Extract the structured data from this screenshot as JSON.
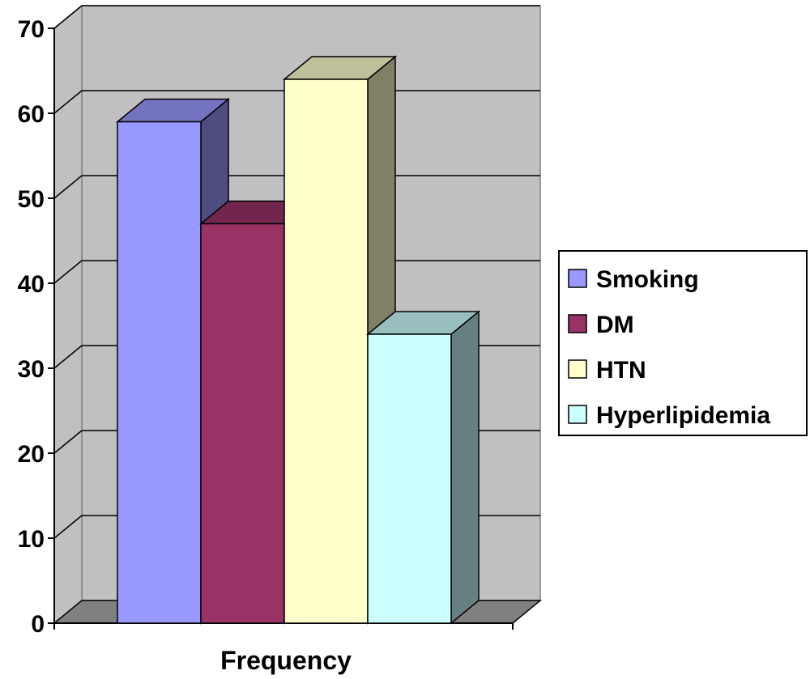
{
  "chart_data": {
    "type": "bar",
    "style": "3d-clustered-column",
    "categories": [
      "Frequency"
    ],
    "series": [
      {
        "name": "Smoking",
        "values": [
          59
        ],
        "color": "#9999FF",
        "side_color": "#4D4D80",
        "top_color": "#7373BF"
      },
      {
        "name": "DM",
        "values": [
          47
        ],
        "color": "#993366",
        "side_color": "#4D1933",
        "top_color": "#73264D"
      },
      {
        "name": "HTN",
        "values": [
          64
        ],
        "color": "#FFFFCC",
        "side_color": "#808066",
        "top_color": "#BFBF99"
      },
      {
        "name": "Hyperlipidemia",
        "values": [
          34
        ],
        "color": "#CCFFFF",
        "side_color": "#668080",
        "top_color": "#99BFBF"
      }
    ],
    "title": "",
    "xlabel": "Frequency",
    "ylabel": "",
    "ylim": [
      0,
      70
    ],
    "yticks": [
      "0",
      "10",
      "20",
      "30",
      "40",
      "50",
      "60",
      "70"
    ],
    "grid": true,
    "legend": "right",
    "wall_color": "#C0C0C0",
    "floor_color": "#808080"
  }
}
